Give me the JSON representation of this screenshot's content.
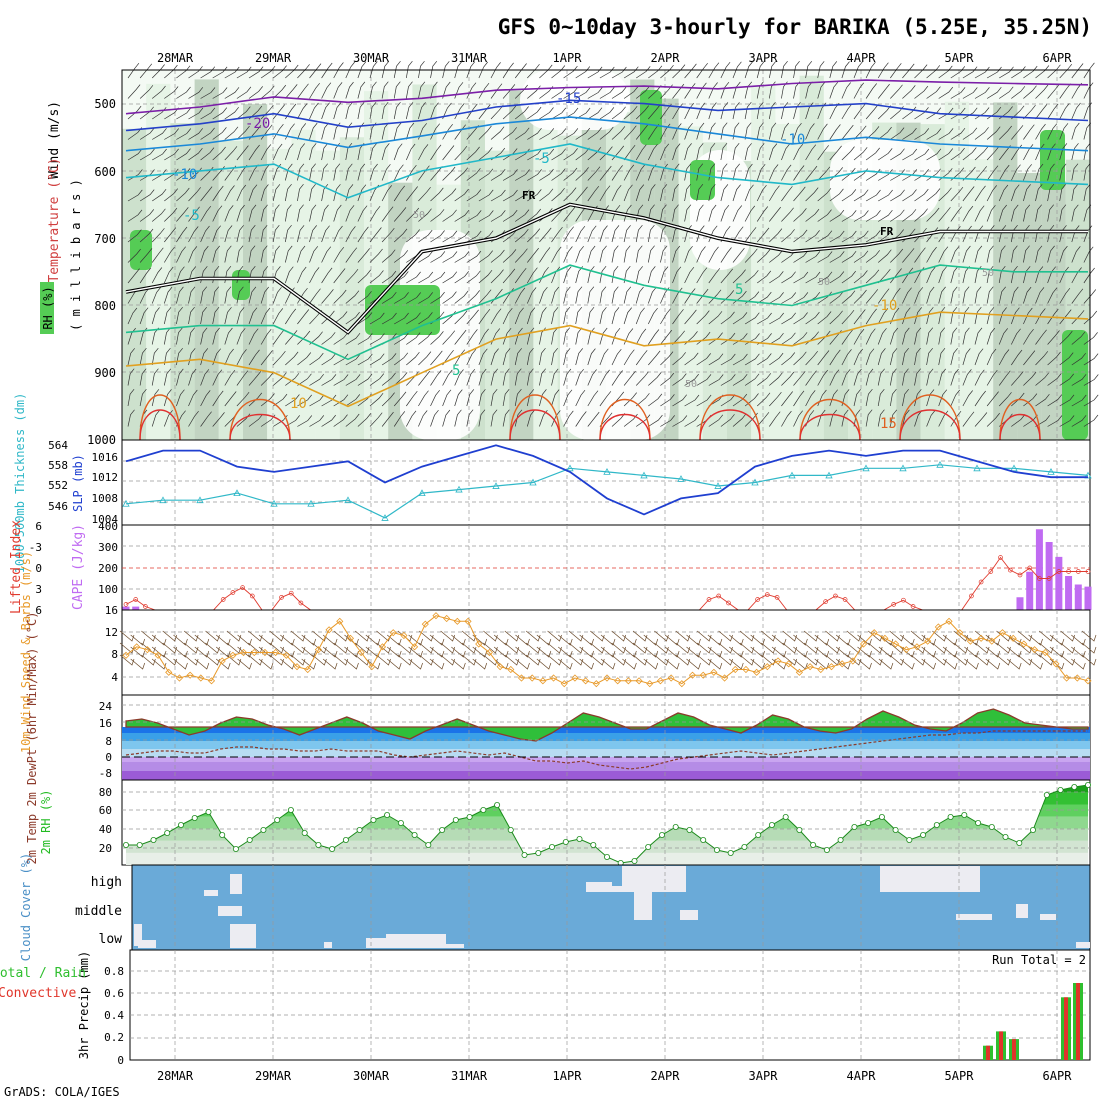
{
  "title": "GFS 0~10day 3-hourly for BARIKA (5.25E, 35.25N)",
  "footer": "GrADS: COLA/IGES",
  "dates": [
    "28MAR",
    "29MAR",
    "30MAR",
    "31MAR",
    "1APR",
    "2APR",
    "3APR",
    "4APR",
    "5APR",
    "6APR"
  ],
  "colors": {
    "rh_light": "#e3f2e3",
    "rh_mid": "#c6dcc6",
    "rh_dark": "#b6c8b6",
    "rh_green": "#55cc55",
    "slp": "#1f3fd0",
    "thickness": "#30b8c8",
    "lifted": "#e03a2e",
    "cape": "#c06bf2",
    "wind_speed": "#e89a2a",
    "barb": "#6b4a2a",
    "temp_line": "#8b3a2a",
    "rh2m": "#22bb22",
    "cloud_bg": "#6aaad8",
    "cloud_block": "#ececf2",
    "rain": "#2fbf2f",
    "convective": "#e0352a"
  },
  "chart_data": [
    {
      "id": "upper_air",
      "type": "heatmap",
      "title": "Wind (m/s) / Temperature (°C) / RH (%)",
      "ylabel_parts": [
        "Wind (m/s)",
        "Temperature (°C)",
        "RH (%)"
      ],
      "yunit": "( m i l l i b a r s )",
      "ylim": [
        1000,
        450
      ],
      "yticks": [
        500,
        600,
        700,
        800,
        900,
        1000
      ],
      "contour_labels": [
        "-15",
        "-20",
        "-10",
        "-5",
        "-10",
        "-5",
        "FR",
        "FR",
        "5",
        "5",
        "-10",
        "10",
        "15",
        "50",
        "50",
        "50",
        "50"
      ],
      "isotherms": [
        {
          "label": "-20",
          "color": "#7b1fa8",
          "levels": [
            515,
            505,
            490,
            498,
            492,
            480,
            476,
            474,
            478,
            470,
            465,
            468,
            470,
            472
          ]
        },
        {
          "label": "-15",
          "color": "#2340c8",
          "levels": [
            540,
            530,
            515,
            535,
            525,
            505,
            495,
            500,
            510,
            505,
            500,
            515,
            520,
            525
          ]
        },
        {
          "label": "-10",
          "color": "#1a88d8",
          "levels": [
            570,
            560,
            545,
            565,
            548,
            530,
            520,
            530,
            545,
            560,
            550,
            560,
            565,
            570
          ]
        },
        {
          "label": "-5",
          "color": "#20b8c8",
          "levels": [
            610,
            600,
            590,
            640,
            600,
            580,
            560,
            590,
            610,
            620,
            600,
            610,
            615,
            620
          ]
        },
        {
          "label": "FR",
          "color": "#111111",
          "levels": [
            780,
            760,
            760,
            840,
            720,
            700,
            650,
            670,
            700,
            720,
            710,
            690,
            690,
            690
          ]
        },
        {
          "label": "5",
          "color": "#20c090",
          "levels": [
            840,
            830,
            830,
            880,
            830,
            790,
            740,
            770,
            790,
            800,
            770,
            740,
            750,
            750
          ]
        },
        {
          "label": "10",
          "color": "#e0a020",
          "levels": [
            890,
            880,
            900,
            950,
            900,
            850,
            830,
            860,
            850,
            860,
            830,
            810,
            815,
            820
          ]
        }
      ]
    },
    {
      "id": "slp_thickness",
      "type": "line",
      "ylabel_left": "1000-500mb Thickness (dm)",
      "ylabel_right": "SLP (mb)",
      "yticks_left": [
        546,
        552,
        558,
        564
      ],
      "yticks_right": [
        1004,
        1008,
        1012,
        1016
      ],
      "series": [
        {
          "name": "SLP (mb)",
          "values": [
            1014,
            1016,
            1016,
            1013,
            1012,
            1013,
            1014,
            1010,
            1013,
            1015,
            1017,
            1015,
            1012,
            1007,
            1004,
            1007,
            1008,
            1013,
            1015,
            1016,
            1015,
            1016,
            1016,
            1014,
            1012,
            1011,
            1011
          ]
        },
        {
          "name": "1000-500mb Thickness (dm)",
          "values": [
            548,
            549,
            549,
            551,
            548,
            548,
            549,
            544,
            551,
            552,
            553,
            554,
            558,
            557,
            556,
            555,
            553,
            554,
            556,
            556,
            558,
            558,
            559,
            558,
            558,
            557,
            556
          ]
        }
      ]
    },
    {
      "id": "cape_li",
      "type": "bar",
      "ylabel_left": "Lifted Index",
      "ylabel_right": "CAPE (J/kg)",
      "yticks_left": [
        "6",
        "-3",
        "0",
        "3",
        "6"
      ],
      "yticks_right": [
        "400",
        "300",
        "200",
        "100",
        "16"
      ],
      "cape_values": [
        16,
        16,
        0,
        0,
        0,
        0,
        0,
        0,
        0,
        0,
        0,
        0,
        0,
        0,
        0,
        0,
        0,
        0,
        0,
        0,
        0,
        0,
        0,
        0,
        0,
        0,
        0,
        0,
        0,
        0,
        0,
        0,
        0,
        0,
        0,
        0,
        0,
        0,
        0,
        0,
        0,
        0,
        0,
        0,
        0,
        0,
        0,
        0,
        0,
        0,
        0,
        0,
        0,
        0,
        0,
        0,
        0,
        0,
        0,
        0,
        0,
        0,
        0,
        0,
        0,
        0,
        0,
        0,
        0,
        0,
        0,
        0,
        0,
        0,
        0,
        0,
        0,
        0,
        0,
        0,
        0,
        0,
        0,
        0,
        0,
        0,
        0,
        0,
        0,
        0,
        0,
        0,
        60,
        180,
        380,
        320,
        250,
        160,
        120,
        110
      ],
      "li_values": [
        5.2,
        4.5,
        5.5,
        6,
        6,
        6,
        6,
        6,
        6,
        6,
        4.5,
        3.5,
        2.8,
        4,
        6,
        6,
        4.2,
        3.6,
        5,
        6,
        6,
        6,
        6,
        6,
        6,
        6,
        6,
        6,
        6,
        6,
        6,
        6,
        6,
        6,
        6,
        6,
        6,
        6,
        6,
        6,
        6,
        6,
        6,
        6,
        6,
        6,
        6,
        6,
        6,
        6,
        6,
        6,
        6,
        6,
        6,
        6,
        6,
        6,
        6,
        6,
        4.5,
        4,
        5,
        6,
        6,
        4.5,
        3.8,
        4.2,
        6,
        6,
        6,
        6,
        4.8,
        4,
        4.5,
        6,
        6,
        6,
        6,
        5.2,
        4.6,
        5.5,
        6,
        6,
        6,
        6,
        6,
        4,
        2,
        0.5,
        -1.5,
        0.3,
        1,
        0,
        1.5,
        1.5,
        0.5,
        0.5,
        0.5,
        0.5
      ]
    },
    {
      "id": "wind10m",
      "type": "line",
      "ylabel": "10m Wind Speed & Barbs (m/s)",
      "yticks": [
        "4",
        "8",
        "12"
      ],
      "values": [
        7,
        8.5,
        8,
        7,
        4,
        3,
        3.5,
        3,
        2.5,
        6,
        7,
        7.5,
        7.5,
        7.5,
        7.5,
        7,
        5,
        4.5,
        8,
        11.5,
        13,
        10,
        7.5,
        5,
        8.5,
        11,
        10.5,
        8.5,
        12.5,
        14,
        13.5,
        13,
        13,
        9,
        7.5,
        5,
        4.5,
        3,
        3,
        2.5,
        3,
        2,
        3,
        2.5,
        2,
        3,
        2.5,
        2.5,
        2.5,
        2,
        2.5,
        3,
        2,
        3.5,
        3.5,
        4,
        3,
        4.5,
        4.5,
        4,
        5,
        6,
        5.5,
        4,
        5,
        4.5,
        5,
        5.5,
        6,
        9,
        11,
        10,
        9,
        8,
        8.5,
        9.5,
        12,
        13,
        11,
        9.5,
        10,
        9.5,
        11,
        10,
        9,
        8,
        7.5,
        5.5,
        3,
        3,
        2.5
      ]
    },
    {
      "id": "temp2m",
      "type": "area",
      "ylabel": "2m Temp 2m DewPt (6hr Min/Max) (°C)",
      "yticks": [
        "-8",
        "0",
        "8",
        "16",
        "24"
      ],
      "temp": [
        18,
        19,
        17,
        14,
        11,
        13,
        17,
        20,
        19,
        16,
        14,
        11,
        14,
        17,
        20,
        17,
        13,
        11,
        9,
        13,
        16,
        19,
        16,
        13,
        11,
        9,
        8,
        12,
        17,
        22,
        20,
        17,
        14,
        14,
        18,
        22,
        20,
        16,
        14,
        12,
        16,
        21,
        19,
        15,
        13,
        12,
        14,
        19,
        23,
        20,
        16,
        14,
        13,
        17,
        22,
        24,
        21,
        17,
        16,
        15,
        14,
        14
      ],
      "dewpt": [
        1,
        2,
        3,
        3,
        2,
        2,
        4,
        5,
        5,
        4,
        4,
        3,
        3,
        4,
        3,
        3,
        3,
        1,
        0,
        1,
        2,
        3,
        2,
        1,
        2,
        0,
        -2,
        -2,
        -3,
        -2,
        -4,
        -5,
        -6,
        -5,
        -3,
        -1,
        0,
        1,
        2,
        3,
        2,
        1,
        2,
        3,
        4,
        5,
        6,
        7,
        8,
        9,
        10,
        11,
        11,
        12,
        12,
        13,
        13,
        13,
        13,
        13,
        13,
        13
      ]
    },
    {
      "id": "rh2m",
      "type": "area",
      "ylabel": "2m RH (%)",
      "yticks": [
        "20",
        "40",
        "60",
        "80"
      ],
      "values": [
        30,
        30,
        35,
        42,
        50,
        57,
        63,
        40,
        26,
        35,
        45,
        55,
        65,
        42,
        30,
        26,
        35,
        45,
        55,
        60,
        52,
        40,
        30,
        45,
        55,
        58,
        65,
        70,
        45,
        20,
        22,
        28,
        33,
        36,
        30,
        18,
        12,
        14,
        28,
        40,
        48,
        45,
        35,
        25,
        22,
        28,
        40,
        50,
        58,
        45,
        30,
        25,
        35,
        48,
        52,
        58,
        45,
        35,
        40,
        50,
        58,
        60,
        52,
        48,
        38,
        32,
        45,
        80,
        85,
        88,
        90
      ]
    },
    {
      "id": "cloud",
      "type": "heatmap",
      "ylabel": "Cloud Cover (%)",
      "yticks": [
        "high",
        "middle",
        "low"
      ]
    },
    {
      "id": "precip",
      "type": "bar",
      "ylabel": "3hr Precip (mm)",
      "legend_left": "Total / Rain",
      "legend_right": "Convective",
      "run_total": "Run Total = 2",
      "yticks": [
        "0",
        "0.2",
        "0.4",
        "0.6",
        "0.8"
      ],
      "total": [
        0.13,
        0.26,
        0.19,
        0.57,
        0.7
      ],
      "convective": [
        0.13,
        0.26,
        0.19,
        0.57,
        0.7
      ]
    }
  ]
}
